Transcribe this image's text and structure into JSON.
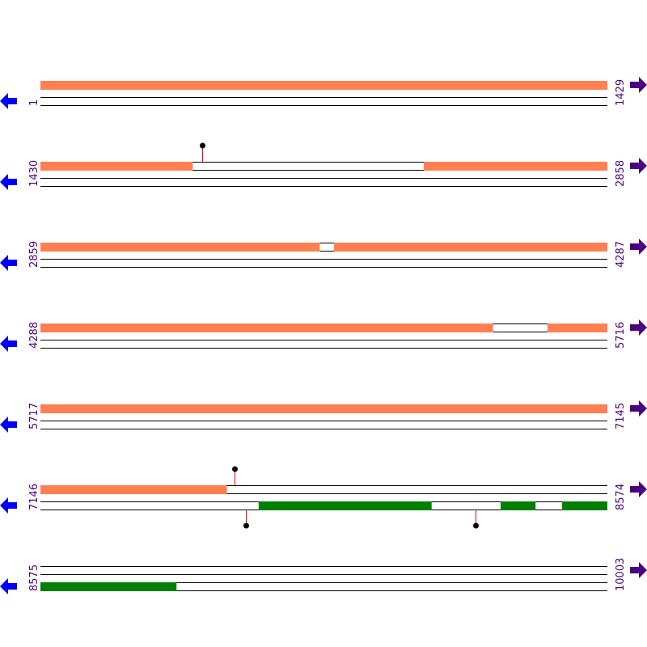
{
  "colors": {
    "forward": "#ff7f50",
    "reverse": "#008000",
    "marker_stem": "#ff0000",
    "marker_head": "#000000",
    "left_arrow": "#0000ff",
    "right_arrow": "#4b0082",
    "label": "#4b0082"
  },
  "icons": {
    "left": "arrow-left-icon",
    "right": "arrow-right-icon"
  },
  "rows": [
    {
      "start": "1",
      "end": "1429",
      "forward": [
        [
          1,
          1429
        ]
      ],
      "reverse": [],
      "markers_top": [],
      "markers_bottom": []
    },
    {
      "start": "1430",
      "end": "2858",
      "forward": [
        [
          1430,
          1813
        ],
        [
          2396,
          2858
        ]
      ],
      "reverse": [],
      "markers_top": [
        1838
      ],
      "markers_bottom": []
    },
    {
      "start": "2859",
      "end": "4287",
      "forward": [
        [
          2859,
          3562
        ],
        [
          3599,
          4287
        ]
      ],
      "reverse": [],
      "markers_top": [],
      "markers_bottom": []
    },
    {
      "start": "4288",
      "end": "5716",
      "forward": [
        [
          4288,
          5428
        ],
        [
          5566,
          5716
        ]
      ],
      "reverse": [],
      "markers_top": [],
      "markers_bottom": []
    },
    {
      "start": "5717",
      "end": "7145",
      "forward": [
        [
          5717,
          7145
        ]
      ],
      "reverse": [],
      "markers_top": [],
      "markers_bottom": []
    },
    {
      "start": "7146",
      "end": "8574",
      "forward": [
        [
          7146,
          7615
        ]
      ],
      "reverse": [
        [
          7696,
          8131
        ],
        [
          8306,
          8393
        ],
        [
          8461,
          8574
        ]
      ],
      "markers_top": [
        7635
      ],
      "markers_bottom": [
        7664,
        8243
      ]
    },
    {
      "start": "8575",
      "end": "10003",
      "forward": [],
      "reverse": [
        [
          8575,
          8917
        ]
      ],
      "markers_top": [],
      "markers_bottom": []
    }
  ]
}
